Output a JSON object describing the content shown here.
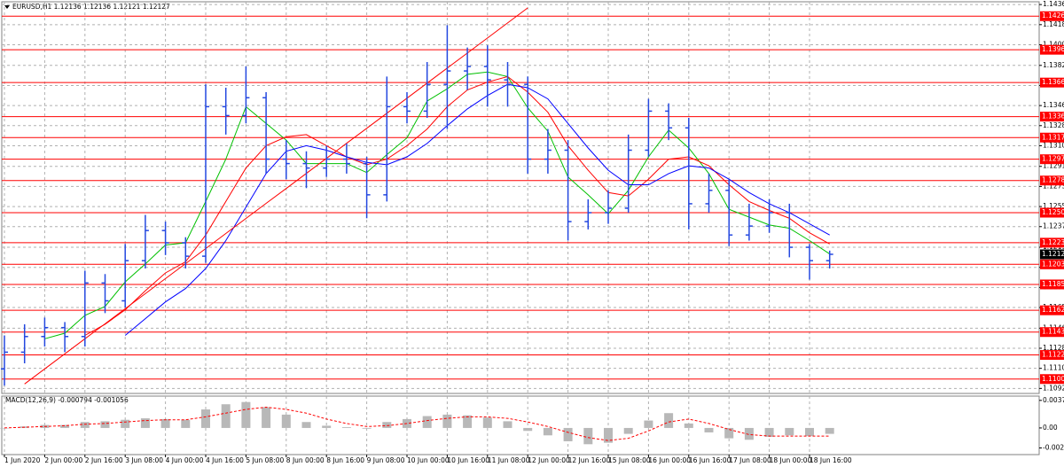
{
  "chart_data": [
    {
      "type": "ohlc",
      "title": "EURUSD,H1  1.12136 1.12136 1.12121 1.12127",
      "categories": [
        "1 Jun 2020",
        null,
        "2 Jun 00:00",
        null,
        "2 Jun 16:00",
        null,
        "3 Jun 08:00",
        null,
        "4 Jun 00:00",
        null,
        "4 Jun 16:00",
        null,
        "5 Jun 08:00",
        null,
        "8 Jun 00:00",
        null,
        "8 Jun 16:00",
        null,
        "9 Jun 08:00",
        null,
        "10 Jun 00:00",
        null,
        "10 Jun 16:00",
        null,
        "11 Jun 08:00",
        null,
        "12 Jun 00:00",
        null,
        "12 Jun 16:00",
        null,
        "15 Jun 08:00",
        null,
        "16 Jun 00:00",
        null,
        "16 Jun 16:00",
        null,
        "17 Jun 08:00",
        null,
        "18 Jun 00:00",
        null,
        "18 Jun 16:00",
        null
      ],
      "color": "#2448e0",
      "open": [
        1.111,
        1.1125,
        1.1139,
        1.1147,
        1.1139,
        1.1187,
        1.1171,
        1.1207,
        1.1234,
        1.1223,
        1.1211,
        1.1345,
        1.1337,
        1.1353,
        1.1298,
        1.1294,
        1.129,
        1.1298,
        1.1294,
        1.1266,
        1.1345,
        1.1341,
        1.1365,
        1.1377,
        1.1381,
        1.1369,
        1.1365,
        1.1298,
        1.1306,
        1.1242,
        1.125,
        1.1254,
        1.1306,
        1.1341,
        1.1326,
        1.1258,
        1.127,
        1.123,
        1.1238,
        1.125,
        1.1219,
        1.1207
      ],
      "high": [
        1.114,
        1.115,
        1.1156,
        1.1152,
        1.1198,
        1.1195,
        1.1222,
        1.1248,
        1.1242,
        1.1228,
        1.1365,
        1.1362,
        1.1381,
        1.1358,
        1.1315,
        1.1305,
        1.131,
        1.1312,
        1.13,
        1.1372,
        1.1358,
        1.1385,
        1.1418,
        1.1398,
        1.14,
        1.1385,
        1.1372,
        1.1325,
        1.1315,
        1.1262,
        1.127,
        1.132,
        1.1352,
        1.1348,
        1.1335,
        1.1285,
        1.128,
        1.1258,
        1.1262,
        1.1258,
        1.1222,
        1.1216
      ],
      "low": [
        1.1095,
        1.1115,
        1.113,
        1.1125,
        1.113,
        1.116,
        1.1165,
        1.12,
        1.1212,
        1.12,
        1.1205,
        1.132,
        1.133,
        1.1285,
        1.128,
        1.1272,
        1.1282,
        1.1285,
        1.1245,
        1.126,
        1.133,
        1.1335,
        1.1325,
        1.136,
        1.1345,
        1.1345,
        1.1285,
        1.1285,
        1.1225,
        1.1235,
        1.124,
        1.125,
        1.13,
        1.1315,
        1.1235,
        1.125,
        1.122,
        1.1225,
        1.1232,
        1.121,
        1.119,
        1.12
      ],
      "close": [
        1.1125,
        1.1139,
        1.1147,
        1.1139,
        1.1187,
        1.1171,
        1.1207,
        1.1234,
        1.1223,
        1.1211,
        1.1345,
        1.1337,
        1.1353,
        1.1298,
        1.1294,
        1.129,
        1.1298,
        1.1294,
        1.1266,
        1.1345,
        1.1341,
        1.1365,
        1.1377,
        1.1381,
        1.1369,
        1.1365,
        1.1298,
        1.1306,
        1.1242,
        1.125,
        1.1254,
        1.1306,
        1.1341,
        1.1326,
        1.1258,
        1.127,
        1.123,
        1.1238,
        1.125,
        1.1219,
        1.1207,
        1.12127
      ],
      "series": [
        {
          "color": "#00c000",
          "values": [
            null,
            null,
            1.1137,
            1.1142,
            1.1158,
            1.1166,
            1.1188,
            1.1204,
            1.1221,
            1.1223,
            1.126,
            1.1298,
            1.1345,
            1.133,
            1.1315,
            1.1294,
            1.1294,
            1.1294,
            1.1286,
            1.1302,
            1.1317,
            1.135,
            1.1361,
            1.1374,
            1.1376,
            1.1372,
            1.1344,
            1.1323,
            1.1282,
            1.1266,
            1.1249,
            1.127,
            1.13,
            1.1324,
            1.1308,
            1.1285,
            1.1253,
            1.1246,
            1.1239,
            1.1236,
            1.1225,
            1.1213
          ]
        },
        {
          "color": "#ff0000",
          "values": [
            null,
            null,
            null,
            null,
            1.114,
            1.115,
            1.1163,
            1.118,
            1.1196,
            1.1206,
            1.123,
            1.126,
            1.129,
            1.131,
            1.1318,
            1.132,
            1.131,
            1.13,
            1.1293,
            1.1298,
            1.131,
            1.1325,
            1.1345,
            1.136,
            1.1367,
            1.1372,
            1.1358,
            1.134,
            1.131,
            1.1288,
            1.1268,
            1.1265,
            1.128,
            1.1298,
            1.13,
            1.1292,
            1.1275,
            1.126,
            1.1252,
            1.1245,
            1.1232,
            1.1222
          ]
        },
        {
          "color": "#0000ff",
          "values": [
            null,
            null,
            null,
            null,
            null,
            null,
            1.114,
            1.1155,
            1.117,
            1.1182,
            1.12,
            1.1225,
            1.1255,
            1.1285,
            1.1305,
            1.131,
            1.1306,
            1.13,
            1.1295,
            1.1293,
            1.13,
            1.1312,
            1.1328,
            1.1343,
            1.1355,
            1.1365,
            1.1362,
            1.1352,
            1.133,
            1.1308,
            1.1288,
            1.1275,
            1.1275,
            1.1285,
            1.1292,
            1.129,
            1.128,
            1.1268,
            1.1258,
            1.125,
            1.124,
            1.123
          ]
        },
        {
          "color": "#ff0000",
          "values": [
            null,
            1.10965,
            1.111,
            1.11235,
            1.1137,
            1.11504,
            1.11639,
            1.11774,
            1.11909,
            1.12043,
            1.12178,
            1.12313,
            1.12448,
            1.12583,
            1.12717,
            1.12852,
            1.12987,
            1.13122,
            1.13256,
            1.13391,
            1.13526,
            1.13661,
            1.13796,
            1.1393,
            1.14065,
            1.142,
            1.14335,
            null,
            null,
            null,
            null,
            null,
            null,
            null,
            null,
            null,
            null,
            null,
            null,
            null,
            null,
            null
          ]
        }
      ],
      "ylim": [
        1.1088,
        1.1439
      ],
      "yticks": [
        1.14365,
        1.14185,
        1.14005,
        {
          "value": 1.1382,
          "label": "1.13820"
        },
        {
          "value": 1.1364,
          "label": "1.13640"
        },
        {
          "value": 1.1346,
          "label": "1.13460"
        },
        {
          "value": 1.1328,
          "label": "1.13280"
        },
        {
          "value": 1.131,
          "label": "1.13100"
        },
        1.12915,
        1.12735,
        1.12555,
        1.12375,
        {
          "value": 1.1219,
          "label": "1.12190"
        },
        {
          "value": 1.1201,
          "label": "1.12010"
        },
        {
          "value": 1.1183,
          "label": "1.11830"
        },
        {
          "value": 1.1165,
          "label": "1.11650"
        },
        1.11465,
        1.11285,
        1.11105,
        1.10925
      ],
      "levels": [
        1.14261,
        {
          "value": 1.1396,
          "label": "1.13960"
        },
        1.13666,
        1.13361,
        1.13173,
        1.12979,
        1.12788,
        {
          "value": 1.125,
          "label": "1.12500"
        },
        1.12231,
        1.12037,
        1.11857,
        1.11625,
        {
          "value": 1.1143,
          "label": "1.11430"
        },
        1.11225,
        1.11009
      ],
      "level_color": "#ff0000",
      "current_price": 1.12127,
      "grid": true
    },
    {
      "type": "macd",
      "title": "MACD(12,26,9) -0.000794 -0.001056",
      "histogram": {
        "color": "#b8b8b8",
        "values": [
          0.0,
          0.0002,
          0.0004,
          0.0004,
          0.0008,
          0.0009,
          0.0011,
          0.0013,
          0.0012,
          0.0011,
          0.0025,
          0.0032,
          0.0035,
          0.0028,
          0.0018,
          0.0008,
          0.0003,
          0.0001,
          -0.0001,
          0.0008,
          0.0012,
          0.0016,
          0.0018,
          0.0017,
          0.0014,
          0.0009,
          -0.0004,
          -0.001,
          -0.0018,
          -0.0022,
          -0.002,
          -0.0008,
          0.001,
          0.002,
          0.0006,
          -0.0006,
          -0.0014,
          -0.0016,
          -0.0012,
          -0.001,
          -0.0011,
          -0.0008
        ]
      },
      "signal": {
        "color": "#ff0000",
        "values": [
          0.0,
          0.0001,
          0.0002,
          0.0003,
          0.0005,
          0.0006,
          0.0008,
          0.001,
          0.0011,
          0.0011,
          0.0015,
          0.002,
          0.0025,
          0.0028,
          0.0025,
          0.002,
          0.0012,
          0.0006,
          0.0002,
          0.0003,
          0.0006,
          0.001,
          0.0013,
          0.0015,
          0.0015,
          0.0013,
          0.0008,
          0.0002,
          -0.0006,
          -0.0013,
          -0.0017,
          -0.0014,
          -0.0004,
          0.0008,
          0.0012,
          0.0006,
          -0.0002,
          -0.0009,
          -0.0011,
          -0.0011,
          -0.0011,
          -0.0011
        ]
      },
      "ylim": [
        -0.0036,
        0.0043
      ],
      "yticks": [
        0.003723,
        {
          "value": 0,
          "label": "0.00"
        },
        -0.0027
      ]
    }
  ]
}
